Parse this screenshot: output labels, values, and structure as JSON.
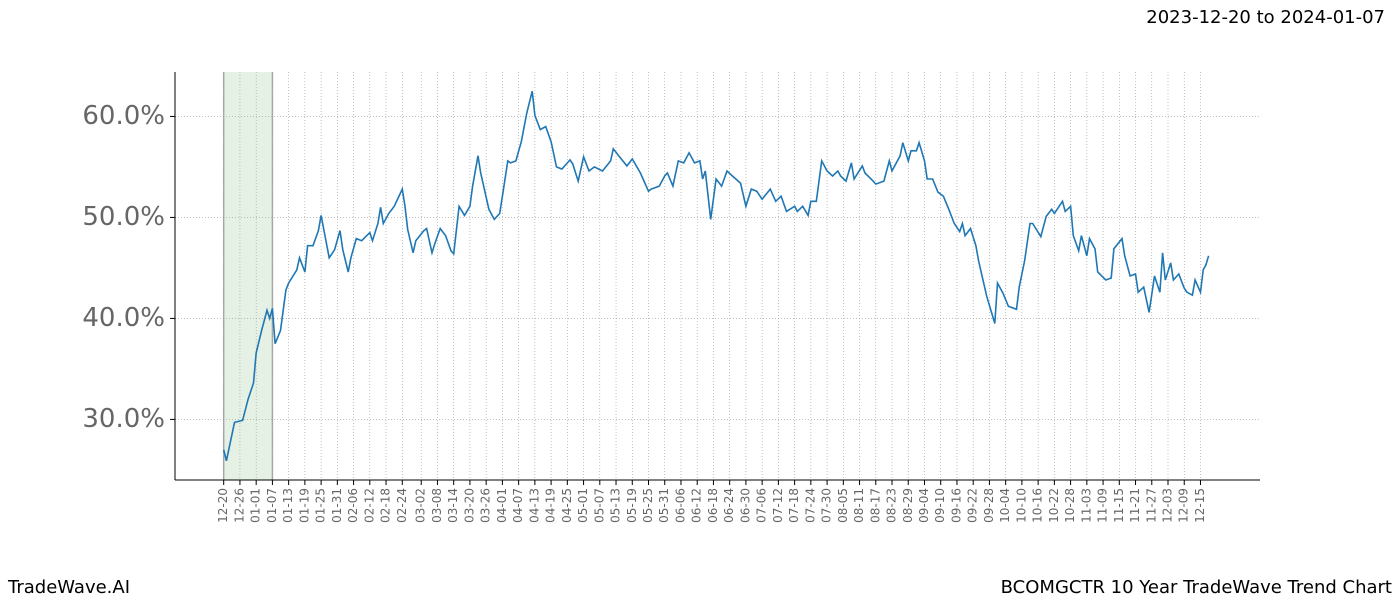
{
  "chart_data": {
    "type": "line",
    "title": "2023-12-20 to 2024-01-07",
    "footer_left": "TradeWave.AI",
    "footer_right": "BCOMGCTR 10 Year TradeWave Trend Chart",
    "shaded_range": [
      0,
      18
    ],
    "shaded_color": "#d5e8d4",
    "grid": true,
    "xlim": [
      -18,
      383
    ],
    "ylim": [
      24,
      64.4
    ],
    "yticks": [
      {
        "value": 30,
        "label": "30.0%"
      },
      {
        "value": 40,
        "label": "40.0%"
      },
      {
        "value": 50,
        "label": "50.0%"
      },
      {
        "value": 60,
        "label": "60.0%"
      }
    ],
    "xticks": [
      {
        "value": 0,
        "label": "12-20"
      },
      {
        "value": 6,
        "label": "12-26"
      },
      {
        "value": 12,
        "label": "01-01"
      },
      {
        "value": 18,
        "label": "01-07"
      },
      {
        "value": 24,
        "label": "01-13"
      },
      {
        "value": 30,
        "label": "01-19"
      },
      {
        "value": 36,
        "label": "01-25"
      },
      {
        "value": 42,
        "label": "01-31"
      },
      {
        "value": 48,
        "label": "02-06"
      },
      {
        "value": 54,
        "label": "02-12"
      },
      {
        "value": 60,
        "label": "02-18"
      },
      {
        "value": 66,
        "label": "02-24"
      },
      {
        "value": 73,
        "label": "03-02"
      },
      {
        "value": 79,
        "label": "03-08"
      },
      {
        "value": 85,
        "label": "03-14"
      },
      {
        "value": 91,
        "label": "03-20"
      },
      {
        "value": 97,
        "label": "03-26"
      },
      {
        "value": 103,
        "label": "04-01"
      },
      {
        "value": 109,
        "label": "04-07"
      },
      {
        "value": 115,
        "label": "04-13"
      },
      {
        "value": 121,
        "label": "04-19"
      },
      {
        "value": 127,
        "label": "04-25"
      },
      {
        "value": 133,
        "label": "05-01"
      },
      {
        "value": 139,
        "label": "05-07"
      },
      {
        "value": 145,
        "label": "05-13"
      },
      {
        "value": 151,
        "label": "05-19"
      },
      {
        "value": 157,
        "label": "05-25"
      },
      {
        "value": 163,
        "label": "05-31"
      },
      {
        "value": 169,
        "label": "06-06"
      },
      {
        "value": 175,
        "label": "06-12"
      },
      {
        "value": 181,
        "label": "06-18"
      },
      {
        "value": 187,
        "label": "06-24"
      },
      {
        "value": 193,
        "label": "06-30"
      },
      {
        "value": 199,
        "label": "07-06"
      },
      {
        "value": 205,
        "label": "07-12"
      },
      {
        "value": 211,
        "label": "07-18"
      },
      {
        "value": 217,
        "label": "07-24"
      },
      {
        "value": 223,
        "label": "07-30"
      },
      {
        "value": 229,
        "label": "08-05"
      },
      {
        "value": 235,
        "label": "08-11"
      },
      {
        "value": 241,
        "label": "08-17"
      },
      {
        "value": 247,
        "label": "08-23"
      },
      {
        "value": 253,
        "label": "08-29"
      },
      {
        "value": 259,
        "label": "09-04"
      },
      {
        "value": 265,
        "label": "09-10"
      },
      {
        "value": 271,
        "label": "09-16"
      },
      {
        "value": 277,
        "label": "09-22"
      },
      {
        "value": 283,
        "label": "09-28"
      },
      {
        "value": 289,
        "label": "10-04"
      },
      {
        "value": 295,
        "label": "10-10"
      },
      {
        "value": 301,
        "label": "10-16"
      },
      {
        "value": 307,
        "label": "10-22"
      },
      {
        "value": 313,
        "label": "10-28"
      },
      {
        "value": 319,
        "label": "11-03"
      },
      {
        "value": 325,
        "label": "11-09"
      },
      {
        "value": 331,
        "label": "11-15"
      },
      {
        "value": 337,
        "label": "11-21"
      },
      {
        "value": 343,
        "label": "11-27"
      },
      {
        "value": 349,
        "label": "12-03"
      },
      {
        "value": 355,
        "label": "12-09"
      },
      {
        "value": 361,
        "label": "12-15"
      }
    ],
    "x": [
      0,
      1,
      4,
      7,
      9,
      11,
      12,
      14,
      16,
      17,
      18,
      19,
      21,
      23,
      24,
      27,
      28,
      30,
      31,
      33,
      35,
      36,
      39,
      41,
      43,
      44,
      46,
      47,
      49,
      51,
      54,
      55,
      57,
      58,
      59,
      61,
      63,
      66,
      67,
      68,
      70,
      71,
      74,
      75,
      77,
      78,
      80,
      82,
      84,
      85,
      87,
      89,
      91,
      92,
      94,
      95,
      98,
      100,
      102,
      103,
      105,
      106,
      108,
      110,
      112,
      114,
      115,
      117,
      119,
      121,
      123,
      125,
      128,
      129,
      131,
      133,
      135,
      137,
      140,
      143,
      144,
      146,
      149,
      151,
      154,
      157,
      158,
      161,
      163,
      164,
      166,
      168,
      170,
      172,
      174,
      176,
      177,
      178,
      180,
      182,
      184,
      186,
      188,
      191,
      193,
      195,
      197,
      199,
      202,
      204,
      206,
      208,
      211,
      212,
      214,
      216,
      217,
      219,
      221,
      223,
      225,
      227,
      228,
      230,
      232,
      233,
      236,
      237,
      240,
      241,
      244,
      246,
      247,
      250,
      251,
      253,
      254,
      256,
      257,
      259,
      260,
      262,
      264,
      266,
      268,
      270,
      272,
      273,
      274,
      276,
      278,
      279,
      282,
      285,
      286,
      288,
      290,
      293,
      294,
      296,
      298,
      299,
      302,
      304,
      306,
      307,
      310,
      311,
      313,
      314,
      316,
      317,
      319,
      320,
      322,
      323,
      326,
      328,
      329,
      332,
      333,
      335,
      337,
      338,
      340,
      342,
      344,
      346,
      347,
      348,
      350,
      351,
      353,
      355,
      356,
      358,
      359,
      361,
      362,
      363,
      364
    ],
    "series": [
      {
        "color": "#1f77b4",
        "values": [
          27.0,
          25.9,
          29.7,
          29.9,
          32,
          33.6,
          36.6,
          38.8,
          40.8,
          40,
          41,
          37.5,
          38.8,
          42.8,
          43.5,
          44.8,
          46,
          44.6,
          47.2,
          47.2,
          48.7,
          50.2,
          46,
          46.8,
          48.7,
          46.8,
          44.6,
          46,
          47.9,
          47.7,
          48.5,
          47.7,
          49.4,
          51,
          49.4,
          50.4,
          51.1,
          52.8,
          51.1,
          48.8,
          46.5,
          47.7,
          48.7,
          48.9,
          46.5,
          47.4,
          48.9,
          48.2,
          46.7,
          46.4,
          51.1,
          50.2,
          51.1,
          53.1,
          56.1,
          54.4,
          50.8,
          49.8,
          50.4,
          52.1,
          55.6,
          55.4,
          55.6,
          57.5,
          60.3,
          62.5,
          60.1,
          58.7,
          59,
          57.5,
          55,
          54.8,
          55.7,
          55.3,
          53.6,
          56,
          54.6,
          55,
          54.6,
          55.6,
          56.8,
          56.1,
          55.1,
          55.8,
          54.4,
          52.6,
          52.8,
          53.1,
          54.1,
          54.4,
          53.1,
          55.6,
          55.4,
          56.4,
          55.4,
          55.6,
          53.8,
          54.6,
          49.8,
          53.8,
          53.1,
          54.6,
          54.1,
          53.4,
          51.1,
          52.8,
          52.6,
          51.8,
          52.8,
          51.6,
          52.1,
          50.6,
          51.1,
          50.6,
          51.1,
          50.2,
          51.6,
          51.6,
          55.6,
          54.6,
          54.1,
          54.6,
          54.1,
          53.6,
          55.4,
          53.8,
          55.1,
          54.4,
          53.6,
          53.3,
          53.6,
          55.6,
          54.6,
          56.1,
          57.4,
          55.6,
          56.6,
          56.6,
          57.4,
          55.6,
          53.8,
          53.8,
          52.5,
          52.1,
          50.8,
          49.4,
          48.6,
          49.4,
          48.2,
          48.9,
          47.2,
          45.7,
          42.2,
          39.5,
          43.5,
          42.5,
          41.2,
          40.9,
          43.1,
          45.7,
          49.4,
          49.4,
          48.1,
          50.1,
          50.8,
          50.4,
          51.6,
          50.6,
          51.1,
          48.2,
          46.7,
          48.2,
          46.2,
          47.9,
          46.9,
          44.6,
          43.8,
          44.0,
          46.9,
          47.9,
          46.2,
          44.2,
          44.4,
          42.6,
          43.1,
          40.6,
          44.2,
          42.6,
          46.5,
          43.8,
          45.5,
          43.8,
          44.4,
          43.0,
          42.6,
          42.3,
          43.8,
          42.6,
          44.8,
          45.3,
          46.2
        ]
      }
    ]
  }
}
